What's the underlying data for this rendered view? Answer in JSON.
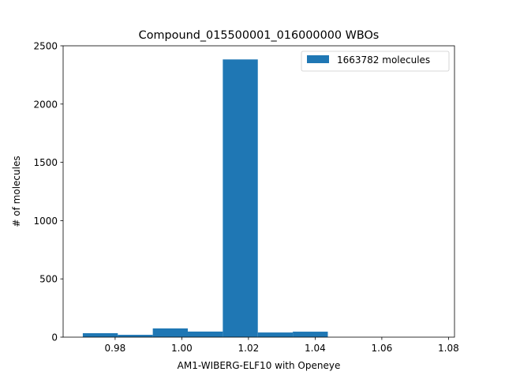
{
  "chart_data": {
    "type": "bar",
    "title": "Compound_015500001_016000000 WBOs",
    "xlabel": "AM1-WIBERG-ELF10 with Openeye",
    "ylabel": "# of molecules",
    "xlim": [
      0.9644,
      1.0818
    ],
    "ylim": [
      0,
      2500
    ],
    "x_ticks": [
      0.98,
      1.0,
      1.02,
      1.04,
      1.06,
      1.08
    ],
    "x_tick_labels": [
      "0.98",
      "1.00",
      "1.02",
      "1.04",
      "1.06",
      "1.08"
    ],
    "y_ticks": [
      0,
      500,
      1000,
      1500,
      2000,
      2500
    ],
    "y_tick_labels": [
      "0",
      "500",
      "1000",
      "1500",
      "2000",
      "2500"
    ],
    "bins": [
      {
        "x0": 0.9703,
        "x1": 0.9808,
        "count": 34
      },
      {
        "x0": 0.9808,
        "x1": 0.9913,
        "count": 20
      },
      {
        "x0": 0.9913,
        "x1": 1.0018,
        "count": 75
      },
      {
        "x0": 1.0018,
        "x1": 1.0123,
        "count": 48
      },
      {
        "x0": 1.0123,
        "x1": 1.0228,
        "count": 2383
      },
      {
        "x0": 1.0228,
        "x1": 1.0333,
        "count": 40
      },
      {
        "x0": 1.0333,
        "x1": 1.0438,
        "count": 47
      }
    ],
    "bar_color": "#1f77b4",
    "legend": {
      "label": "1663782 molecules",
      "position": "top-right"
    },
    "grid": false
  }
}
